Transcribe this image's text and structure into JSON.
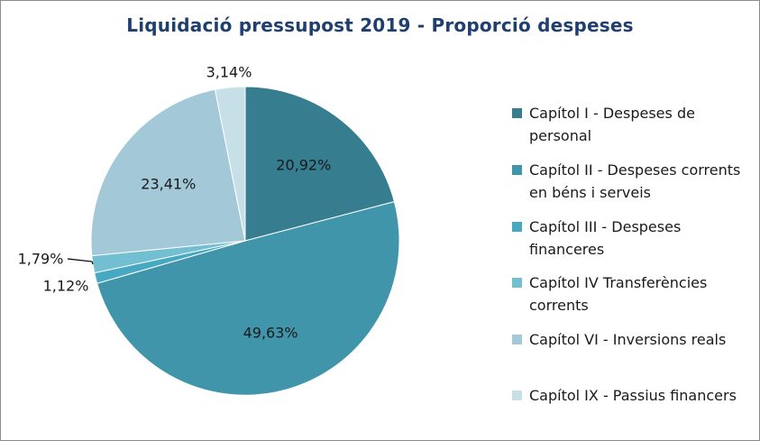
{
  "chart_data": {
    "type": "pie",
    "title": "Liquidació pressupost 2019 - Proporció despeses",
    "legend_position": "right",
    "slices": [
      {
        "label": "Capítol I - Despeses de personal",
        "value": 20.92,
        "value_label": "20,92%",
        "color": "#357d8f"
      },
      {
        "label": "Capítol II -  Despeses corrents en béns i serveis",
        "value": 49.63,
        "value_label": "49,63%",
        "color": "#4195ab"
      },
      {
        "label": "Capítol III -  Despeses financeres",
        "value": 1.12,
        "value_label": "1,12%",
        "color": "#47a8c1"
      },
      {
        "label": "Capítol IV Transferències corrents",
        "value": 1.79,
        "value_label": "1,79%",
        "color": "#73bfd2"
      },
      {
        "label": " Capítol VI - Inversions reals",
        "value": 23.41,
        "value_label": "23,41%",
        "color": "#a3c9d8"
      },
      {
        "label": "Capítol IX - Passius financers",
        "value": 3.14,
        "value_label": "3,14%",
        "color": "#c7e0e8"
      }
    ]
  }
}
